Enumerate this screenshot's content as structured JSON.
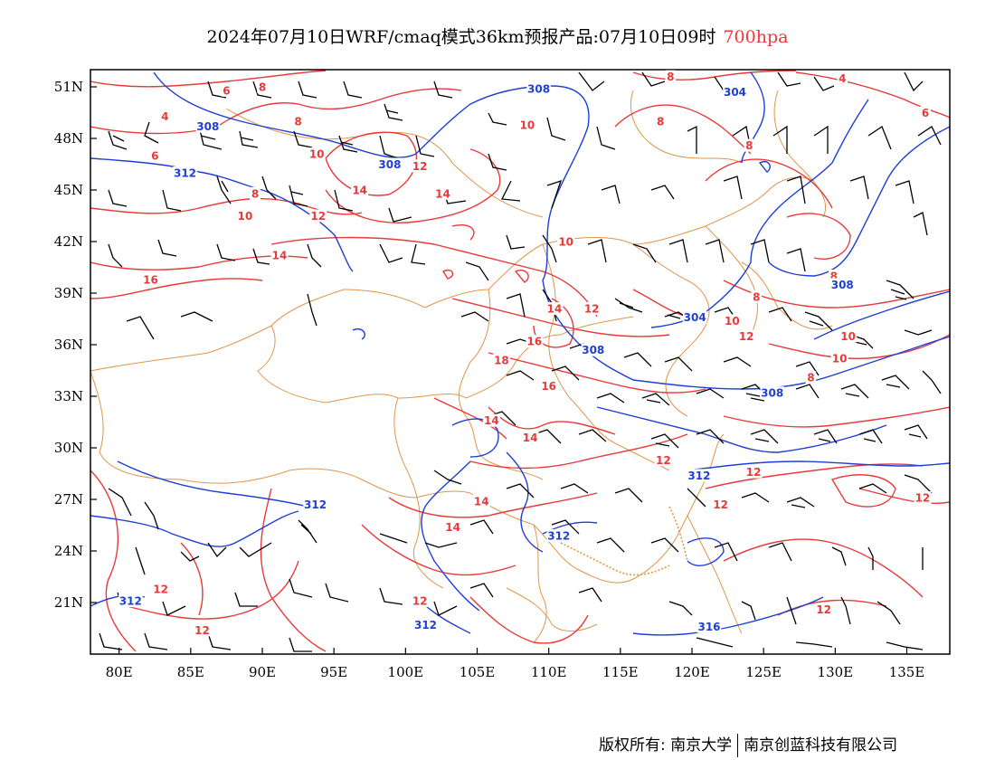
{
  "title": {
    "main": "2024年07月10日WRF/cmaq模式36km预报产品:07月10日09时",
    "level": "700hpa",
    "level_color": "#e83a3a"
  },
  "axes": {
    "lon_labels": [
      "80E",
      "85E",
      "90E",
      "95E",
      "100E",
      "105E",
      "110E",
      "115E",
      "120E",
      "125E",
      "130E",
      "135E"
    ],
    "lat_labels": [
      "51N",
      "48N",
      "45N",
      "42N",
      "39N",
      "36N",
      "33N",
      "30N",
      "27N",
      "24N",
      "21N"
    ],
    "lon_range": [
      78,
      138
    ],
    "lat_range": [
      18,
      52
    ]
  },
  "colors": {
    "temperature_contour": "#e83a3a",
    "height_contour": "#1f3fd6",
    "boundaries": "#e0954a",
    "wind_barbs": "#000000"
  },
  "contour_labels": {
    "temperature": [
      {
        "text": "4",
        "lon": 83.2,
        "lat": 49.3
      },
      {
        "text": "6",
        "lon": 87.5,
        "lat": 50.8
      },
      {
        "text": "8",
        "lon": 90.0,
        "lat": 51.0
      },
      {
        "text": "8",
        "lon": 92.5,
        "lat": 49.0
      },
      {
        "text": "10",
        "lon": 108.5,
        "lat": 48.8
      },
      {
        "text": "8",
        "lon": 118.5,
        "lat": 51.6
      },
      {
        "text": "8",
        "lon": 117.8,
        "lat": 49.0
      },
      {
        "text": "4",
        "lon": 130.5,
        "lat": 51.5
      },
      {
        "text": "6",
        "lon": 136.3,
        "lat": 49.5
      },
      {
        "text": "6",
        "lon": 82.5,
        "lat": 47.0
      },
      {
        "text": "10",
        "lon": 93.8,
        "lat": 47.1
      },
      {
        "text": "12",
        "lon": 101.0,
        "lat": 46.4
      },
      {
        "text": "14",
        "lon": 96.8,
        "lat": 45.0
      },
      {
        "text": "14",
        "lon": 102.6,
        "lat": 44.8
      },
      {
        "text": "8",
        "lon": 89.5,
        "lat": 44.8
      },
      {
        "text": "10",
        "lon": 88.8,
        "lat": 43.5
      },
      {
        "text": "12",
        "lon": 93.9,
        "lat": 43.5
      },
      {
        "text": "8",
        "lon": 124.0,
        "lat": 47.6
      },
      {
        "text": "10",
        "lon": 111.2,
        "lat": 42.0
      },
      {
        "text": "14",
        "lon": 91.2,
        "lat": 41.2
      },
      {
        "text": "16",
        "lon": 82.2,
        "lat": 39.8
      },
      {
        "text": "8",
        "lon": 129.9,
        "lat": 40.0
      },
      {
        "text": "8",
        "lon": 124.5,
        "lat": 38.8
      },
      {
        "text": "14",
        "lon": 110.4,
        "lat": 38.1
      },
      {
        "text": "12",
        "lon": 113.0,
        "lat": 38.1
      },
      {
        "text": "10",
        "lon": 122.8,
        "lat": 37.4
      },
      {
        "text": "12",
        "lon": 123.8,
        "lat": 36.5
      },
      {
        "text": "10",
        "lon": 130.9,
        "lat": 36.5
      },
      {
        "text": "10",
        "lon": 130.3,
        "lat": 35.2
      },
      {
        "text": "16",
        "lon": 109.0,
        "lat": 36.2
      },
      {
        "text": "18",
        "lon": 106.7,
        "lat": 35.1
      },
      {
        "text": "8",
        "lon": 128.3,
        "lat": 34.1
      },
      {
        "text": "16",
        "lon": 110.0,
        "lat": 33.6
      },
      {
        "text": "14",
        "lon": 106.0,
        "lat": 31.6
      },
      {
        "text": "14",
        "lon": 108.7,
        "lat": 30.6
      },
      {
        "text": "12",
        "lon": 118.0,
        "lat": 29.3
      },
      {
        "text": "12",
        "lon": 124.3,
        "lat": 28.6
      },
      {
        "text": "14",
        "lon": 105.3,
        "lat": 26.9
      },
      {
        "text": "12",
        "lon": 122.0,
        "lat": 26.7
      },
      {
        "text": "12",
        "lon": 136.1,
        "lat": 27.1
      },
      {
        "text": "14",
        "lon": 103.3,
        "lat": 25.4
      },
      {
        "text": "12",
        "lon": 82.9,
        "lat": 21.8
      },
      {
        "text": "12",
        "lon": 101.0,
        "lat": 21.1
      },
      {
        "text": "12",
        "lon": 129.2,
        "lat": 20.6
      },
      {
        "text": "12",
        "lon": 85.8,
        "lat": 19.4
      }
    ],
    "height": [
      {
        "text": "308",
        "lon": 109.3,
        "lat": 50.9
      },
      {
        "text": "304",
        "lon": 123.0,
        "lat": 50.7
      },
      {
        "text": "308",
        "lon": 86.2,
        "lat": 48.7
      },
      {
        "text": "308",
        "lon": 98.9,
        "lat": 46.5
      },
      {
        "text": "312",
        "lon": 84.6,
        "lat": 46.0
      },
      {
        "text": "308",
        "lon": 130.5,
        "lat": 39.5
      },
      {
        "text": "304",
        "lon": 120.2,
        "lat": 37.6
      },
      {
        "text": "308",
        "lon": 113.1,
        "lat": 35.7
      },
      {
        "text": "308",
        "lon": 125.6,
        "lat": 33.2
      },
      {
        "text": "312",
        "lon": 120.5,
        "lat": 28.4
      },
      {
        "text": "312",
        "lon": 93.7,
        "lat": 26.7
      },
      {
        "text": "312",
        "lon": 110.7,
        "lat": 24.9
      },
      {
        "text": "312",
        "lon": 80.8,
        "lat": 21.1
      },
      {
        "text": "312",
        "lon": 101.4,
        "lat": 19.7
      },
      {
        "text": "316",
        "lon": 121.2,
        "lat": 19.6
      }
    ]
  },
  "copyright": {
    "left": "版权所有: 南京大学",
    "right": "南京创蓝科技有限公司"
  }
}
